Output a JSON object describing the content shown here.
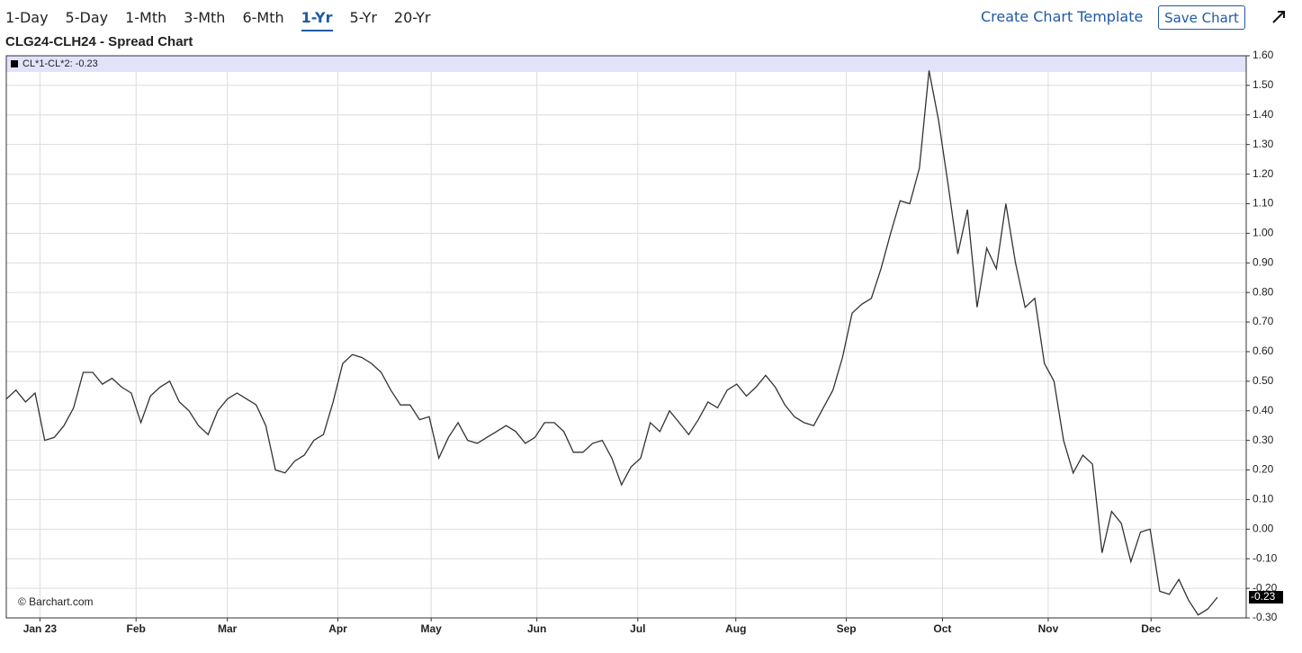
{
  "toolbar": {
    "periods": [
      "1-Day",
      "5-Day",
      "1-Mth",
      "3-Mth",
      "6-Mth",
      "1-Yr",
      "5-Yr",
      "20-Yr"
    ],
    "active": 5,
    "create_template": "Create Chart Template",
    "save": "Save Chart"
  },
  "chart_data": {
    "type": "line",
    "title": "CLG24-CLH24 - Spread Chart",
    "legend": "CL*1-CL*2: -0.23",
    "credit": "© Barchart.com",
    "series": [
      {
        "color": "#333333",
        "values": [
          0.44,
          0.47,
          0.43,
          0.46,
          0.3,
          0.31,
          0.35,
          0.41,
          0.53,
          0.53,
          0.49,
          0.51,
          0.48,
          0.46,
          0.36,
          0.45,
          0.48,
          0.5,
          0.43,
          0.4,
          0.35,
          0.32,
          0.4,
          0.44,
          0.46,
          0.44,
          0.42,
          0.35,
          0.2,
          0.19,
          0.23,
          0.25,
          0.3,
          0.32,
          0.43,
          0.56,
          0.59,
          0.58,
          0.56,
          0.53,
          0.47,
          0.42,
          0.42,
          0.37,
          0.38,
          0.24,
          0.31,
          0.36,
          0.3,
          0.29,
          0.31,
          0.33,
          0.35,
          0.33,
          0.29,
          0.31,
          0.36,
          0.36,
          0.33,
          0.26,
          0.26,
          0.29,
          0.3,
          0.24,
          0.15,
          0.21,
          0.24,
          0.36,
          0.33,
          0.4,
          0.36,
          0.32,
          0.37,
          0.43,
          0.41,
          0.47,
          0.49,
          0.45,
          0.48,
          0.52,
          0.48,
          0.42,
          0.38,
          0.36,
          0.35,
          0.41,
          0.47,
          0.58,
          0.73,
          0.76,
          0.78,
          0.88,
          1.0,
          1.11,
          1.1,
          1.22,
          1.55,
          1.38,
          1.16,
          0.93,
          1.08,
          0.75,
          0.95,
          0.88,
          1.1,
          0.9,
          0.75,
          0.78,
          0.56,
          0.5,
          0.3,
          0.19,
          0.25,
          0.22,
          -0.08,
          0.06,
          0.02,
          -0.11,
          -0.01,
          0.0,
          -0.21,
          -0.22,
          -0.17,
          -0.24,
          -0.29,
          -0.27,
          -0.23
        ]
      }
    ],
    "last_value_label": "-0.23",
    "xlim": [
      0,
      129
    ],
    "xticks": [
      {
        "value": 3.5,
        "label": "Jan 23"
      },
      {
        "value": 13.5,
        "label": "Feb"
      },
      {
        "value": 23,
        "label": "Mar"
      },
      {
        "value": 34.5,
        "label": "Apr"
      },
      {
        "value": 44.2,
        "label": "May"
      },
      {
        "value": 55.2,
        "label": "Jun"
      },
      {
        "value": 65.7,
        "label": "Jul"
      },
      {
        "value": 75.9,
        "label": "Aug"
      },
      {
        "value": 87.4,
        "label": "Sep"
      },
      {
        "value": 97.4,
        "label": "Oct"
      },
      {
        "value": 108.4,
        "label": "Nov"
      },
      {
        "value": 119.1,
        "label": "Dec"
      }
    ],
    "ylim": [
      -0.3,
      1.6
    ],
    "yticks": [
      {
        "value": -0.3,
        "label": "-0.30"
      },
      {
        "value": -0.2,
        "label": "-0.20"
      },
      {
        "value": -0.1,
        "label": "-0.10"
      },
      {
        "value": 0,
        "label": "0.00"
      },
      {
        "value": 0.1,
        "label": "0.10"
      },
      {
        "value": 0.2,
        "label": "0.20"
      },
      {
        "value": 0.3,
        "label": "0.30"
      },
      {
        "value": 0.4,
        "label": "0.40"
      },
      {
        "value": 0.5,
        "label": "0.50"
      },
      {
        "value": 0.6,
        "label": "0.60"
      },
      {
        "value": 0.7,
        "label": "0.70"
      },
      {
        "value": 0.8,
        "label": "0.80"
      },
      {
        "value": 0.9,
        "label": "0.90"
      },
      {
        "value": 1.0,
        "label": "1.00"
      },
      {
        "value": 1.1,
        "label": "1.10"
      },
      {
        "value": 1.2,
        "label": "1.20"
      },
      {
        "value": 1.3,
        "label": "1.30"
      },
      {
        "value": 1.4,
        "label": "1.40"
      },
      {
        "value": 1.5,
        "label": "1.50"
      },
      {
        "value": 1.6,
        "label": "1.60"
      }
    ],
    "grid": true
  }
}
